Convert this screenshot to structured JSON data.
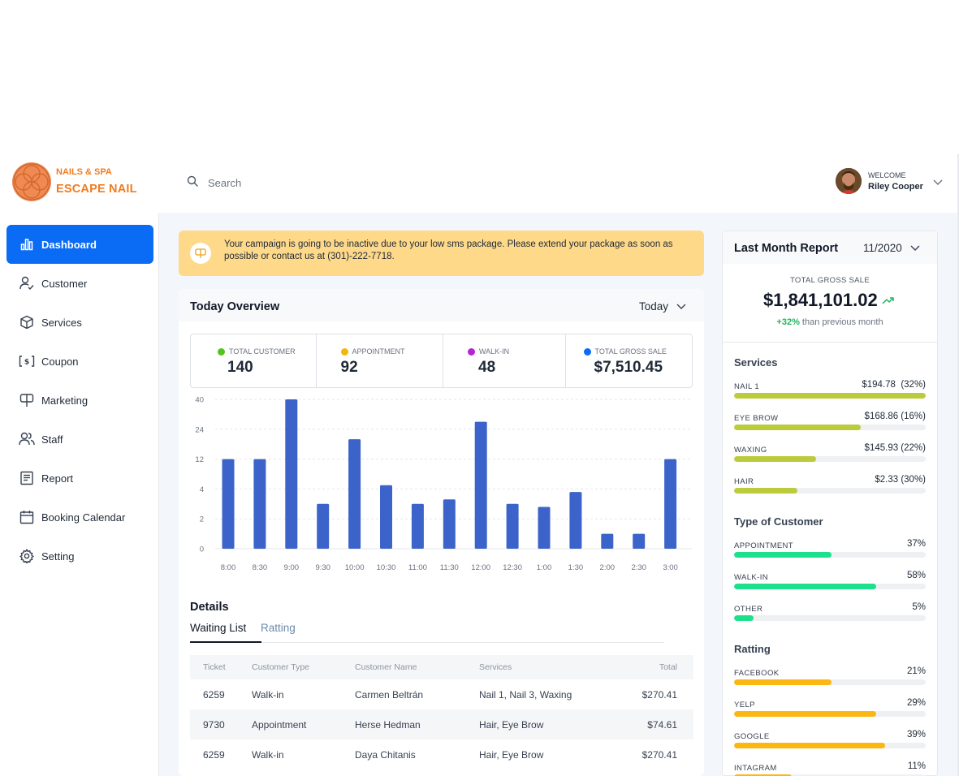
{
  "brand": {
    "tagline": "NAILS & SPA",
    "name": "ESCAPE NAIL"
  },
  "search": {
    "placeholder": "Search"
  },
  "user": {
    "greeting": "WELCOME",
    "name": "Riley Cooper"
  },
  "sidebar": {
    "items": [
      {
        "label": "Dashboard",
        "icon": "bar-chart-icon",
        "active": true
      },
      {
        "label": "Customer",
        "icon": "user-check-icon",
        "active": false
      },
      {
        "label": "Services",
        "icon": "box-icon",
        "active": false
      },
      {
        "label": "Coupon",
        "icon": "coupon-icon",
        "active": false
      },
      {
        "label": "Marketing",
        "icon": "billboard-icon",
        "active": false
      },
      {
        "label": "Staff",
        "icon": "users-icon",
        "active": false
      },
      {
        "label": "Report",
        "icon": "report-icon",
        "active": false
      },
      {
        "label": "Booking Calendar",
        "icon": "calendar-icon",
        "active": false
      },
      {
        "label": "Setting",
        "icon": "gear-icon",
        "active": false
      }
    ]
  },
  "alert": {
    "text": "Your campaign is going to be inactive due to your low sms package. Please extend your package as soon as possible or contact us at (301)-222-7718."
  },
  "overview": {
    "title": "Today Overview",
    "period": "Today",
    "stats": [
      {
        "label": "TOTAL CUSTOMER",
        "value": "140",
        "color": "#52c41a"
      },
      {
        "label": "APPOINTMENT",
        "value": "92",
        "color": "#f5b50a"
      },
      {
        "label": "WALK-IN",
        "value": "48",
        "color": "#b624d6"
      },
      {
        "label": "TOTAL GROSS SALE",
        "value": "$7,510.45",
        "color": "#0a6bf5"
      }
    ]
  },
  "chart_data": {
    "type": "bar",
    "categories": [
      "8:00",
      "8:30",
      "9:00",
      "9:30",
      "10:00",
      "10:30",
      "11:00",
      "11:30",
      "12:00",
      "12:30",
      "1:00",
      "1:30",
      "2:00",
      "2:30",
      "3:00"
    ],
    "values": [
      12,
      12,
      40,
      3,
      20,
      5,
      3,
      3.3,
      28,
      3,
      2.8,
      3.8,
      1,
      1,
      12
    ],
    "ytick_labels": [
      "0",
      "2",
      "4",
      "12",
      "24",
      "40"
    ],
    "ytick_values": [
      0,
      2,
      4,
      12,
      24,
      40
    ],
    "color": "#3b63c9",
    "grid": true
  },
  "details": {
    "title": "Details",
    "tabs": [
      {
        "label": "Waiting List",
        "active": true
      },
      {
        "label": "Ratting",
        "active": false
      }
    ],
    "columns": [
      "Ticket",
      "Customer Type",
      "Customer Name",
      "Services",
      "Total"
    ],
    "rows": [
      [
        "6259",
        "Walk-in",
        "Carmen Beltrán",
        "Nail 1, Nail 3, Waxing",
        "$270.41"
      ],
      [
        "9730",
        "Appointment",
        "Herse Hedman",
        "Hair, Eye Brow",
        "$74.61"
      ],
      [
        "6259",
        "Walk-in",
        "Daya Chitanis",
        "Hair, Eye Brow",
        "$270.41"
      ]
    ]
  },
  "report": {
    "title": "Last Month Report",
    "month": "11/2020",
    "gross_label": "TOTAL GROSS SALE",
    "gross_value": "$1,841,101.02",
    "change_pct": "+32%",
    "change_text": "than previous month",
    "sections": [
      {
        "title": "Services",
        "color": "#bccb3c",
        "items": [
          {
            "label": "NAIL 1",
            "value": "$194.78  (32%)",
            "fill": 1.0
          },
          {
            "label": "EYE BROW",
            "value": "$168.86 (16%)",
            "fill": 0.66
          },
          {
            "label": "WAXING",
            "value": "$145.93 (22%)",
            "fill": 0.43
          },
          {
            "label": "HAIR",
            "value": "$2.33 (30%)",
            "fill": 0.33
          }
        ]
      },
      {
        "title": "Type of Customer",
        "color": "#1de08c",
        "items": [
          {
            "label": "APPOINTMENT",
            "value": "37%",
            "fill": 0.51
          },
          {
            "label": "WALK-IN",
            "value": "58%",
            "fill": 0.74
          },
          {
            "label": "OTHER",
            "value": "5%",
            "fill": 0.1
          }
        ]
      },
      {
        "title": "Ratting",
        "color": "#fbb712",
        "items": [
          {
            "label": "FACEBOOK",
            "value": "21%",
            "fill": 0.51
          },
          {
            "label": "YELP",
            "value": "29%",
            "fill": 0.74
          },
          {
            "label": "GOOGLE",
            "value": "39%",
            "fill": 0.79
          },
          {
            "label": "INTAGRAM",
            "value": "11%",
            "fill": 0.3
          }
        ]
      }
    ]
  }
}
